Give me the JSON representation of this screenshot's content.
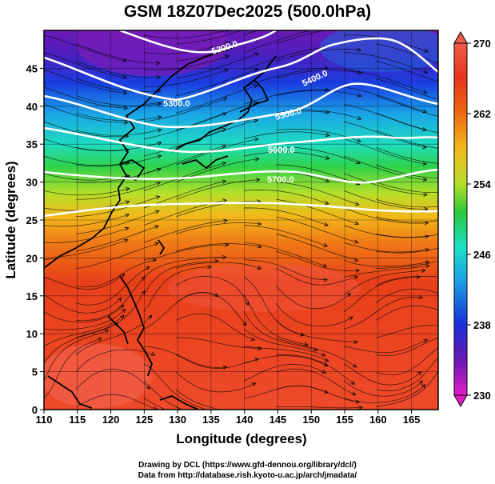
{
  "title": "GSM 18Z07Dec2025 (500.0hPa)",
  "map": {
    "xlabel": "Longitude (degrees)",
    "ylabel": "Latitude  (degrees)",
    "x_ticks": [
      "110",
      "115",
      "120",
      "125",
      "130",
      "135",
      "140",
      "145",
      "150",
      "155",
      "160",
      "165"
    ],
    "y_ticks": [
      "0",
      "5",
      "10",
      "15",
      "20",
      "25",
      "30",
      "35",
      "40",
      "45"
    ],
    "x_range": [
      110,
      169
    ],
    "y_range": [
      0,
      50
    ],
    "contours": [
      {
        "label": "5200.0"
      },
      {
        "label": "5300.0"
      },
      {
        "label": "5400.0"
      },
      {
        "label": "5500.0"
      },
      {
        "label": "5600.0"
      },
      {
        "label": "5700.0"
      }
    ]
  },
  "colorbar": {
    "ticks": [
      "270",
      "262",
      "254",
      "246",
      "238",
      "230"
    ],
    "range": [
      230,
      270
    ],
    "colors": [
      "#e11cc8",
      "#6a1ab4",
      "#1a2fd9",
      "#1a9be6",
      "#1fe0c8",
      "#29c93a",
      "#b5df2a",
      "#f2b81a",
      "#f06a14",
      "#e8341a",
      "#f05a4a"
    ]
  },
  "credits": {
    "line1": "Drawing by DCL (https://www.gfd-dennou.org/library/dcl/)",
    "line2": "Data from http://database.rish.kyoto-u.ac.jp/arch/jmadata/"
  }
}
